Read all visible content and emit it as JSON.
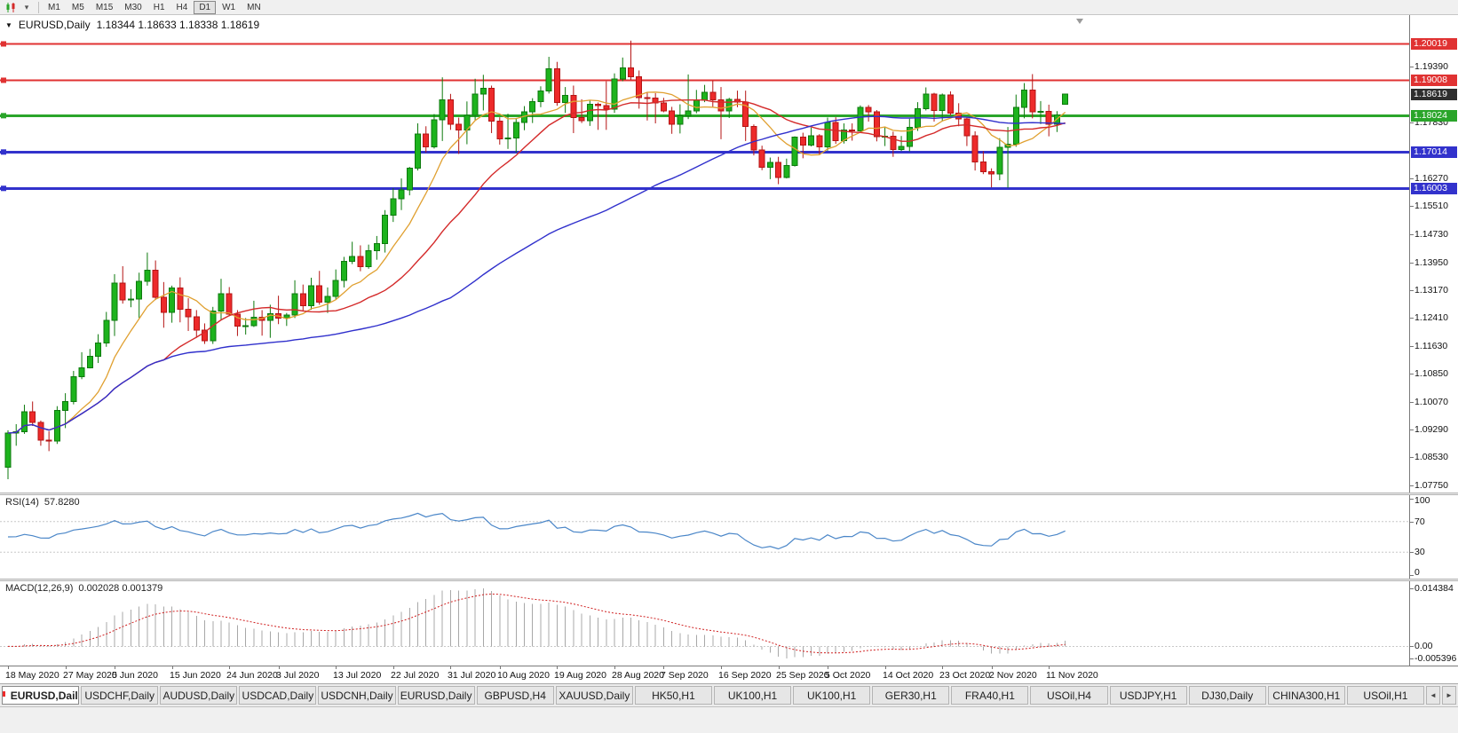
{
  "toolbar": {
    "timeframes": [
      "M1",
      "M5",
      "M15",
      "M30",
      "H1",
      "H4",
      "D1",
      "W1",
      "MN"
    ],
    "active_timeframe": "D1"
  },
  "icons": {
    "chart_menu_caret": "▼",
    "toolbar_caret": "▾",
    "tab_scroll_left": "◄",
    "tab_scroll_right": "►"
  },
  "chart": {
    "symbol": "EURUSD,Daily",
    "ohlc": "1.18344 1.18633 1.18338 1.18619",
    "current_price": "1.18619",
    "levels": [
      {
        "label": "1.20019",
        "color": "#e03232",
        "line_width": 2
      },
      {
        "label": "1.19008",
        "color": "#e03232",
        "line_width": 2
      },
      {
        "label": "1.18024",
        "color": "#2aa52a",
        "line_width": 3
      },
      {
        "label": "1.17014",
        "color": "#3232cc",
        "line_width": 3
      },
      {
        "label": "1.16003",
        "color": "#3232cc",
        "line_width": 3
      }
    ],
    "y_axis_ticks": [
      "1.19390",
      "1.17830",
      "1.16270",
      "1.15510",
      "1.14730",
      "1.13950",
      "1.13170",
      "1.12410",
      "1.11630",
      "1.10850",
      "1.10070",
      "1.09290",
      "1.08530",
      "1.07750"
    ]
  },
  "rsi": {
    "label": "RSI(14)",
    "value": "57.8280",
    "ticks": [
      "100",
      "70",
      "30",
      "0"
    ],
    "levels": [
      70,
      30
    ]
  },
  "macd": {
    "label": "MACD(12,26,9)",
    "values": "0.002028 0.001379",
    "ticks": [
      {
        "label": "0.014384",
        "anchor": "max"
      },
      {
        "label": "0.00",
        "anchor": "zero"
      },
      {
        "label": "-0.005396",
        "anchor": "min"
      }
    ]
  },
  "date_axis": {
    "labels": [
      {
        "text": "18 May 2020",
        "index": 0
      },
      {
        "text": "27 May 2020",
        "index": 7
      },
      {
        "text": "5 Jun 2020",
        "index": 13
      },
      {
        "text": "15 Jun 2020",
        "index": 20
      },
      {
        "text": "24 Jun 2020",
        "index": 27
      },
      {
        "text": "3 Jul 2020",
        "index": 33
      },
      {
        "text": "13 Jul 2020",
        "index": 40
      },
      {
        "text": "22 Jul 2020",
        "index": 47
      },
      {
        "text": "31 Jul 2020",
        "index": 54
      },
      {
        "text": "10 Aug 2020",
        "index": 60
      },
      {
        "text": "19 Aug 2020",
        "index": 67
      },
      {
        "text": "28 Aug 2020",
        "index": 74
      },
      {
        "text": "7 Sep 2020",
        "index": 80
      },
      {
        "text": "16 Sep 2020",
        "index": 87
      },
      {
        "text": "25 Sep 2020",
        "index": 94
      },
      {
        "text": "5 Oct 2020",
        "index": 100
      },
      {
        "text": "14 Oct 2020",
        "index": 107
      },
      {
        "text": "23 Oct 2020",
        "index": 114
      },
      {
        "text": "2 Nov 2020",
        "index": 120
      },
      {
        "text": "11 Nov 2020",
        "index": 127
      }
    ]
  },
  "tabbar": {
    "tabs": [
      {
        "label": "EURUSD,Daily",
        "active": true
      },
      {
        "label": "USDCHF,Daily",
        "active": false
      },
      {
        "label": "AUDUSD,Daily",
        "active": false
      },
      {
        "label": "USDCAD,Daily",
        "active": false
      },
      {
        "label": "USDCNH,Daily",
        "active": false
      },
      {
        "label": "EURUSD,Daily",
        "active": false
      },
      {
        "label": "GBPUSD,H4",
        "active": false
      },
      {
        "label": "XAUUSD,Daily",
        "active": false
      },
      {
        "label": "HK50,H1",
        "active": false
      },
      {
        "label": "UK100,H1",
        "active": false
      },
      {
        "label": "UK100,H1",
        "active": false
      },
      {
        "label": "GER30,H1",
        "active": false
      },
      {
        "label": "FRA40,H1",
        "active": false
      },
      {
        "label": "USOil,H4",
        "active": false
      },
      {
        "label": "USDJPY,H1",
        "active": false
      },
      {
        "label": "DJ30,Daily",
        "active": false
      },
      {
        "label": "CHINA300,H1",
        "active": false
      },
      {
        "label": "USOil,H1",
        "active": false
      }
    ]
  },
  "chart_data": {
    "type": "candlestick",
    "symbol": "EURUSD",
    "timeframe": "Daily",
    "price_axis": {
      "top": 1.2082,
      "bottom": 1.0755
    },
    "overlays": {
      "ma_fast_period": 8,
      "ma_mid_period": 20,
      "ma_slow_period": 55
    },
    "indicators": {
      "rsi_period": 14,
      "macd": [
        12,
        26,
        9
      ]
    },
    "colors": {
      "candle_up": "#1db31d",
      "candle_up_border": "#0d7a0d",
      "candle_down": "#ed2a2a",
      "candle_down_border": "#b41414",
      "ma_fast": "#e0a030",
      "ma_mid": "#d42a2a",
      "ma_slow": "#3030cc",
      "rsi_line": "#4a86c8",
      "rsi_level": "#c8c8c8",
      "macd_hist": "#a8a8a8",
      "macd_signal": "#d02020",
      "current_badge": "#2e2e2e",
      "level_red": "#e03232",
      "level_green": "#2aa52a",
      "level_blue": "#3232cc"
    },
    "candles": [
      [
        1.0825,
        1.0928,
        1.0792,
        1.092
      ],
      [
        1.092,
        1.0945,
        1.0885,
        1.0924
      ],
      [
        1.0924,
        1.0999,
        1.0918,
        1.098
      ],
      [
        1.098,
        1.1008,
        1.094,
        1.095
      ],
      [
        1.095,
        1.0955,
        1.0885,
        1.09
      ],
      [
        1.09,
        1.0925,
        1.087,
        1.0898
      ],
      [
        1.0898,
        1.0995,
        1.089,
        1.0983
      ],
      [
        1.0983,
        1.1031,
        1.0934,
        1.1008
      ],
      [
        1.1008,
        1.1093,
        1.1,
        1.1077
      ],
      [
        1.1077,
        1.1145,
        1.107,
        1.1102
      ],
      [
        1.1102,
        1.1154,
        1.11,
        1.1134
      ],
      [
        1.1134,
        1.1195,
        1.1115,
        1.117
      ],
      [
        1.117,
        1.1257,
        1.116,
        1.1234
      ],
      [
        1.1234,
        1.1362,
        1.119,
        1.1337
      ],
      [
        1.1337,
        1.1384,
        1.128,
        1.129
      ],
      [
        1.129,
        1.132,
        1.127,
        1.1293
      ],
      [
        1.1293,
        1.1366,
        1.124,
        1.1342
      ],
      [
        1.1342,
        1.1422,
        1.133,
        1.1373
      ],
      [
        1.1373,
        1.14,
        1.129,
        1.1298
      ],
      [
        1.1298,
        1.134,
        1.1213,
        1.1256
      ],
      [
        1.1256,
        1.133,
        1.1227,
        1.1323
      ],
      [
        1.1323,
        1.1353,
        1.1228,
        1.1264
      ],
      [
        1.1264,
        1.1295,
        1.1204,
        1.1243
      ],
      [
        1.1243,
        1.1262,
        1.1185,
        1.1206
      ],
      [
        1.1206,
        1.1225,
        1.1168,
        1.1177
      ],
      [
        1.1177,
        1.1271,
        1.1168,
        1.126
      ],
      [
        1.126,
        1.1349,
        1.1233,
        1.1308
      ],
      [
        1.1308,
        1.1326,
        1.1245,
        1.1251
      ],
      [
        1.1251,
        1.1262,
        1.119,
        1.1218
      ],
      [
        1.1218,
        1.124,
        1.1194,
        1.1219
      ],
      [
        1.1219,
        1.1288,
        1.1215,
        1.1242
      ],
      [
        1.1242,
        1.1262,
        1.1191,
        1.1234
      ],
      [
        1.1234,
        1.1277,
        1.1185,
        1.1252
      ],
      [
        1.1252,
        1.1302,
        1.1223,
        1.124
      ],
      [
        1.124,
        1.1254,
        1.1218,
        1.1248
      ],
      [
        1.1248,
        1.1345,
        1.124,
        1.1308
      ],
      [
        1.1308,
        1.1333,
        1.1259,
        1.1274
      ],
      [
        1.1274,
        1.1352,
        1.1263,
        1.133
      ],
      [
        1.133,
        1.1371,
        1.1277,
        1.1284
      ],
      [
        1.1284,
        1.1325,
        1.1254,
        1.13
      ],
      [
        1.13,
        1.1375,
        1.1292,
        1.1344
      ],
      [
        1.1344,
        1.141,
        1.1325,
        1.1398
      ],
      [
        1.1398,
        1.1452,
        1.139,
        1.1411
      ],
      [
        1.1411,
        1.1442,
        1.137,
        1.1383
      ],
      [
        1.1383,
        1.1444,
        1.1377,
        1.1427
      ],
      [
        1.1427,
        1.1468,
        1.1402,
        1.1447
      ],
      [
        1.1447,
        1.154,
        1.1422,
        1.1526
      ],
      [
        1.1526,
        1.1601,
        1.1507,
        1.1571
      ],
      [
        1.1571,
        1.1628,
        1.154,
        1.1596
      ],
      [
        1.1596,
        1.166,
        1.1581,
        1.1656
      ],
      [
        1.1656,
        1.1781,
        1.165,
        1.1752
      ],
      [
        1.1752,
        1.1773,
        1.17,
        1.1716
      ],
      [
        1.1716,
        1.1807,
        1.1711,
        1.1791
      ],
      [
        1.1791,
        1.1909,
        1.1732,
        1.1846
      ],
      [
        1.1846,
        1.1863,
        1.1763,
        1.1778
      ],
      [
        1.1778,
        1.1797,
        1.1696,
        1.1762
      ],
      [
        1.1762,
        1.1842,
        1.1723,
        1.1803
      ],
      [
        1.1803,
        1.1905,
        1.179,
        1.1863
      ],
      [
        1.1863,
        1.1916,
        1.1817,
        1.1878
      ],
      [
        1.1878,
        1.1886,
        1.1754,
        1.1787
      ],
      [
        1.1787,
        1.1798,
        1.1722,
        1.1738
      ],
      [
        1.1738,
        1.1808,
        1.171,
        1.174
      ],
      [
        1.174,
        1.1796,
        1.17,
        1.1784
      ],
      [
        1.1784,
        1.1829,
        1.1762,
        1.1813
      ],
      [
        1.1813,
        1.1851,
        1.1782,
        1.1842
      ],
      [
        1.1842,
        1.1884,
        1.1826,
        1.1871
      ],
      [
        1.1871,
        1.1966,
        1.1864,
        1.1933
      ],
      [
        1.1933,
        1.1952,
        1.183,
        1.1839
      ],
      [
        1.1839,
        1.1882,
        1.181,
        1.1859
      ],
      [
        1.1859,
        1.1886,
        1.1754,
        1.1797
      ],
      [
        1.1797,
        1.1848,
        1.1782,
        1.1788
      ],
      [
        1.1788,
        1.1846,
        1.1774,
        1.1834
      ],
      [
        1.1834,
        1.1839,
        1.1763,
        1.183
      ],
      [
        1.183,
        1.1898,
        1.1763,
        1.1821
      ],
      [
        1.1821,
        1.192,
        1.181,
        1.1904
      ],
      [
        1.1904,
        1.1964,
        1.1898,
        1.1935
      ],
      [
        1.1935,
        1.2011,
        1.1902,
        1.1911
      ],
      [
        1.1911,
        1.1928,
        1.1822,
        1.1853
      ],
      [
        1.1853,
        1.1868,
        1.1789,
        1.1851
      ],
      [
        1.1851,
        1.1865,
        1.1781,
        1.1838
      ],
      [
        1.1838,
        1.1852,
        1.1812,
        1.1816
      ],
      [
        1.1816,
        1.1827,
        1.1752,
        1.1779
      ],
      [
        1.1779,
        1.1834,
        1.1753,
        1.1802
      ],
      [
        1.1802,
        1.1917,
        1.1793,
        1.1815
      ],
      [
        1.1815,
        1.1874,
        1.1809,
        1.1845
      ],
      [
        1.1845,
        1.1888,
        1.184,
        1.1867
      ],
      [
        1.1867,
        1.19,
        1.1827,
        1.1846
      ],
      [
        1.1846,
        1.1882,
        1.1737,
        1.1815
      ],
      [
        1.1815,
        1.1852,
        1.1796,
        1.1848
      ],
      [
        1.1848,
        1.1872,
        1.1826,
        1.184
      ],
      [
        1.184,
        1.1872,
        1.1732,
        1.1772
      ],
      [
        1.1772,
        1.1778,
        1.1692,
        1.1707
      ],
      [
        1.1707,
        1.1719,
        1.1651,
        1.1659
      ],
      [
        1.1659,
        1.1686,
        1.1626,
        1.1672
      ],
      [
        1.1672,
        1.1688,
        1.1612,
        1.1631
      ],
      [
        1.1631,
        1.1683,
        1.1628,
        1.1664
      ],
      [
        1.1664,
        1.1745,
        1.1661,
        1.1743
      ],
      [
        1.1743,
        1.1755,
        1.1684,
        1.1721
      ],
      [
        1.1721,
        1.1769,
        1.1717,
        1.1747
      ],
      [
        1.1747,
        1.1751,
        1.1695,
        1.1716
      ],
      [
        1.1716,
        1.1797,
        1.1705,
        1.1784
      ],
      [
        1.1784,
        1.1798,
        1.1724,
        1.1733
      ],
      [
        1.1733,
        1.1781,
        1.1725,
        1.1763
      ],
      [
        1.1763,
        1.1781,
        1.1733,
        1.176
      ],
      [
        1.176,
        1.1831,
        1.1758,
        1.1826
      ],
      [
        1.1826,
        1.1832,
        1.1786,
        1.1813
      ],
      [
        1.1813,
        1.1818,
        1.1731,
        1.1744
      ],
      [
        1.1744,
        1.1772,
        1.1718,
        1.1745
      ],
      [
        1.1745,
        1.1758,
        1.1688,
        1.1708
      ],
      [
        1.1708,
        1.1746,
        1.1704,
        1.1717
      ],
      [
        1.1717,
        1.1794,
        1.1703,
        1.177
      ],
      [
        1.177,
        1.184,
        1.176,
        1.1822
      ],
      [
        1.1822,
        1.1881,
        1.1817,
        1.1862
      ],
      [
        1.1862,
        1.1866,
        1.1786,
        1.1817
      ],
      [
        1.1817,
        1.1864,
        1.1786,
        1.186
      ],
      [
        1.186,
        1.187,
        1.1803,
        1.181
      ],
      [
        1.181,
        1.1837,
        1.1773,
        1.1794
      ],
      [
        1.1794,
        1.1797,
        1.1718,
        1.1746
      ],
      [
        1.1746,
        1.1759,
        1.165,
        1.1674
      ],
      [
        1.1674,
        1.1704,
        1.164,
        1.1647
      ],
      [
        1.1647,
        1.1656,
        1.1603,
        1.164
      ],
      [
        1.164,
        1.174,
        1.1623,
        1.1715
      ],
      [
        1.1715,
        1.1771,
        1.1602,
        1.1723
      ],
      [
        1.1723,
        1.1861,
        1.1716,
        1.1826
      ],
      [
        1.1826,
        1.1893,
        1.1795,
        1.1873
      ],
      [
        1.1873,
        1.1918,
        1.1795,
        1.1813
      ],
      [
        1.1813,
        1.1843,
        1.1779,
        1.1814
      ],
      [
        1.1814,
        1.1833,
        1.1745,
        1.1779
      ],
      [
        1.1779,
        1.1815,
        1.1757,
        1.1805
      ],
      [
        1.18344,
        1.18633,
        1.18338,
        1.18619
      ]
    ]
  }
}
